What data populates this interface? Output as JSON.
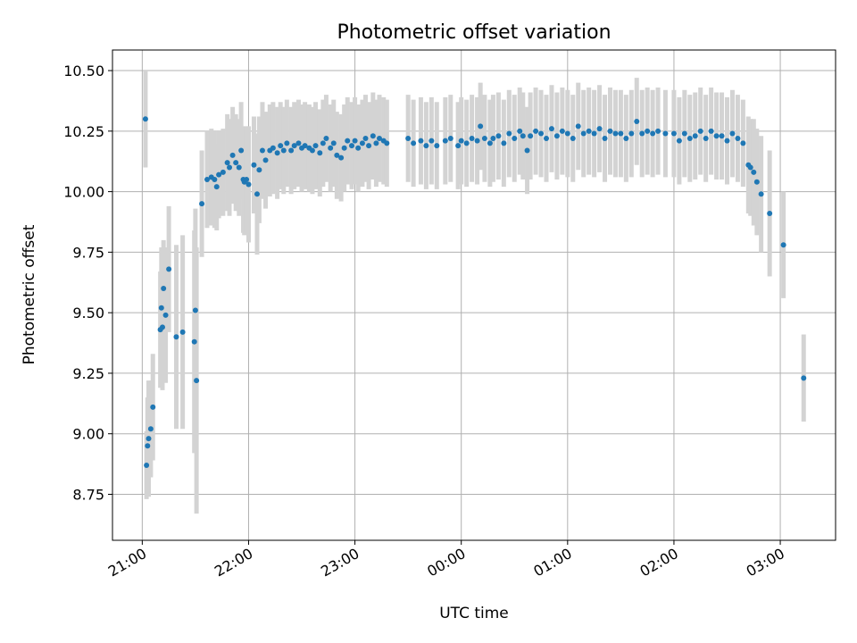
{
  "chart_data": {
    "type": "scatter",
    "title": "Photometric offset variation",
    "xlabel": "UTC time",
    "ylabel": "Photometric offset",
    "x_axis": "time (hours from 21:00 UTC)",
    "xlim": [
      -0.28,
      6.52
    ],
    "ylim": [
      8.56,
      10.585
    ],
    "xticks": [
      {
        "value": 0,
        "label": "21:00"
      },
      {
        "value": 1,
        "label": "22:00"
      },
      {
        "value": 2,
        "label": "23:00"
      },
      {
        "value": 3,
        "label": "00:00"
      },
      {
        "value": 4,
        "label": "01:00"
      },
      {
        "value": 5,
        "label": "02:00"
      },
      {
        "value": 6,
        "label": "03:00"
      }
    ],
    "yticks": [
      {
        "value": 8.75,
        "label": "8.75"
      },
      {
        "value": 9.0,
        "label": "9.00"
      },
      {
        "value": 9.25,
        "label": "9.25"
      },
      {
        "value": 9.5,
        "label": "9.50"
      },
      {
        "value": 9.75,
        "label": "9.75"
      },
      {
        "value": 10.0,
        "label": "10.00"
      },
      {
        "value": 10.25,
        "label": "10.25"
      },
      {
        "value": 10.5,
        "label": "10.50"
      }
    ],
    "grid": true,
    "colors": {
      "point": "#1f77b4",
      "errorbar": "#d3d3d3",
      "grid": "#b0b0b0"
    },
    "series": [
      {
        "points": [
          [
            0.03,
            10.3,
            0.2
          ],
          [
            0.04,
            8.87,
            0.14
          ],
          [
            0.05,
            8.95,
            0.2
          ],
          [
            0.06,
            8.98,
            0.24
          ],
          [
            0.08,
            9.02,
            0.2
          ],
          [
            0.1,
            9.11,
            0.22
          ],
          [
            0.17,
            9.43,
            0.24
          ],
          [
            0.18,
            9.52,
            0.25
          ],
          [
            0.19,
            9.44,
            0.26
          ],
          [
            0.2,
            9.6,
            0.2
          ],
          [
            0.22,
            9.49,
            0.28
          ],
          [
            0.25,
            9.68,
            0.26
          ],
          [
            0.32,
            9.4,
            0.38
          ],
          [
            0.38,
            9.42,
            0.4
          ],
          [
            0.49,
            9.38,
            0.46
          ],
          [
            0.5,
            9.51,
            0.42
          ],
          [
            0.51,
            9.22,
            0.55
          ],
          [
            0.56,
            9.95,
            0.22
          ],
          [
            0.61,
            10.05,
            0.2
          ],
          [
            0.65,
            10.06,
            0.2
          ],
          [
            0.68,
            10.05,
            0.2
          ],
          [
            0.7,
            10.02,
            0.18
          ],
          [
            0.72,
            10.07,
            0.18
          ],
          [
            0.76,
            10.08,
            0.18
          ],
          [
            0.8,
            10.12,
            0.2
          ],
          [
            0.82,
            10.1,
            0.2
          ],
          [
            0.85,
            10.15,
            0.2
          ],
          [
            0.88,
            10.12,
            0.2
          ],
          [
            0.91,
            10.1,
            0.2
          ],
          [
            0.93,
            10.17,
            0.2
          ],
          [
            0.95,
            10.05,
            0.22
          ],
          [
            0.96,
            10.04,
            0.22
          ],
          [
            0.98,
            10.05,
            0.22
          ],
          [
            1.0,
            10.03,
            0.24
          ],
          [
            1.05,
            10.11,
            0.2
          ],
          [
            1.08,
            9.99,
            0.25
          ],
          [
            1.1,
            10.09,
            0.22
          ],
          [
            1.13,
            10.17,
            0.2
          ],
          [
            1.16,
            10.13,
            0.2
          ],
          [
            1.2,
            10.17,
            0.19
          ],
          [
            1.23,
            10.18,
            0.19
          ],
          [
            1.27,
            10.16,
            0.19
          ],
          [
            1.3,
            10.19,
            0.18
          ],
          [
            1.33,
            10.17,
            0.18
          ],
          [
            1.36,
            10.2,
            0.18
          ],
          [
            1.4,
            10.17,
            0.18
          ],
          [
            1.43,
            10.19,
            0.18
          ],
          [
            1.47,
            10.2,
            0.18
          ],
          [
            1.5,
            10.18,
            0.18
          ],
          [
            1.53,
            10.19,
            0.18
          ],
          [
            1.57,
            10.18,
            0.18
          ],
          [
            1.6,
            10.17,
            0.18
          ],
          [
            1.63,
            10.19,
            0.18
          ],
          [
            1.67,
            10.16,
            0.18
          ],
          [
            1.7,
            10.2,
            0.18
          ],
          [
            1.73,
            10.22,
            0.18
          ],
          [
            1.77,
            10.18,
            0.18
          ],
          [
            1.8,
            10.2,
            0.18
          ],
          [
            1.83,
            10.15,
            0.18
          ],
          [
            1.87,
            10.14,
            0.18
          ],
          [
            1.9,
            10.18,
            0.18
          ],
          [
            1.93,
            10.21,
            0.18
          ],
          [
            1.97,
            10.19,
            0.18
          ],
          [
            2.0,
            10.21,
            0.18
          ],
          [
            2.03,
            10.18,
            0.18
          ],
          [
            2.07,
            10.2,
            0.18
          ],
          [
            2.1,
            10.22,
            0.18
          ],
          [
            2.13,
            10.19,
            0.18
          ],
          [
            2.17,
            10.23,
            0.18
          ],
          [
            2.2,
            10.2,
            0.18
          ],
          [
            2.23,
            10.22,
            0.18
          ],
          [
            2.27,
            10.21,
            0.18
          ],
          [
            2.3,
            10.2,
            0.18
          ],
          [
            2.5,
            10.22,
            0.18
          ],
          [
            2.55,
            10.2,
            0.18
          ],
          [
            2.62,
            10.21,
            0.18
          ],
          [
            2.67,
            10.19,
            0.18
          ],
          [
            2.72,
            10.21,
            0.18
          ],
          [
            2.77,
            10.19,
            0.18
          ],
          [
            2.85,
            10.21,
            0.18
          ],
          [
            2.9,
            10.22,
            0.18
          ],
          [
            2.97,
            10.19,
            0.18
          ],
          [
            3.0,
            10.21,
            0.18
          ],
          [
            3.05,
            10.2,
            0.18
          ],
          [
            3.1,
            10.22,
            0.18
          ],
          [
            3.15,
            10.21,
            0.18
          ],
          [
            3.18,
            10.27,
            0.18
          ],
          [
            3.22,
            10.22,
            0.18
          ],
          [
            3.27,
            10.2,
            0.18
          ],
          [
            3.3,
            10.22,
            0.18
          ],
          [
            3.35,
            10.23,
            0.18
          ],
          [
            3.4,
            10.2,
            0.18
          ],
          [
            3.45,
            10.24,
            0.18
          ],
          [
            3.5,
            10.22,
            0.18
          ],
          [
            3.55,
            10.25,
            0.18
          ],
          [
            3.58,
            10.23,
            0.18
          ],
          [
            3.62,
            10.17,
            0.18
          ],
          [
            3.65,
            10.23,
            0.18
          ],
          [
            3.7,
            10.25,
            0.18
          ],
          [
            3.75,
            10.24,
            0.18
          ],
          [
            3.8,
            10.22,
            0.18
          ],
          [
            3.85,
            10.26,
            0.18
          ],
          [
            3.9,
            10.23,
            0.18
          ],
          [
            3.95,
            10.25,
            0.18
          ],
          [
            4.0,
            10.24,
            0.18
          ],
          [
            4.05,
            10.22,
            0.18
          ],
          [
            4.1,
            10.27,
            0.18
          ],
          [
            4.15,
            10.24,
            0.18
          ],
          [
            4.2,
            10.25,
            0.18
          ],
          [
            4.25,
            10.24,
            0.18
          ],
          [
            4.3,
            10.26,
            0.18
          ],
          [
            4.35,
            10.22,
            0.18
          ],
          [
            4.4,
            10.25,
            0.18
          ],
          [
            4.45,
            10.24,
            0.18
          ],
          [
            4.5,
            10.24,
            0.18
          ],
          [
            4.55,
            10.22,
            0.18
          ],
          [
            4.6,
            10.24,
            0.18
          ],
          [
            4.65,
            10.29,
            0.18
          ],
          [
            4.7,
            10.24,
            0.18
          ],
          [
            4.75,
            10.25,
            0.18
          ],
          [
            4.8,
            10.24,
            0.18
          ],
          [
            4.85,
            10.25,
            0.18
          ],
          [
            4.92,
            10.24,
            0.18
          ],
          [
            5.0,
            10.24,
            0.18
          ],
          [
            5.05,
            10.21,
            0.18
          ],
          [
            5.1,
            10.24,
            0.18
          ],
          [
            5.15,
            10.22,
            0.18
          ],
          [
            5.2,
            10.23,
            0.18
          ],
          [
            5.25,
            10.25,
            0.18
          ],
          [
            5.3,
            10.22,
            0.18
          ],
          [
            5.35,
            10.25,
            0.18
          ],
          [
            5.4,
            10.23,
            0.18
          ],
          [
            5.45,
            10.23,
            0.18
          ],
          [
            5.5,
            10.21,
            0.18
          ],
          [
            5.55,
            10.24,
            0.18
          ],
          [
            5.6,
            10.22,
            0.18
          ],
          [
            5.65,
            10.2,
            0.18
          ],
          [
            5.7,
            10.11,
            0.2
          ],
          [
            5.72,
            10.1,
            0.2
          ],
          [
            5.75,
            10.08,
            0.22
          ],
          [
            5.78,
            10.04,
            0.22
          ],
          [
            5.82,
            9.99,
            0.24
          ],
          [
            5.9,
            9.91,
            0.26
          ],
          [
            6.03,
            9.78,
            0.22
          ],
          [
            6.22,
            9.23,
            0.18
          ]
        ]
      }
    ]
  }
}
